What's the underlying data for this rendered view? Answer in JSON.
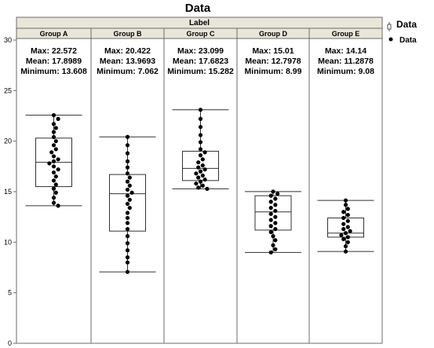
{
  "chart_data": {
    "type": "box",
    "title": "Data",
    "group_header": "Label",
    "ylim": [
      0,
      30
    ],
    "yticks": [
      0,
      5,
      10,
      15,
      20,
      25,
      30
    ],
    "legend": {
      "title": "Data",
      "items": [
        "Data"
      ],
      "position": "right"
    },
    "stat_labels": {
      "max": "Max:",
      "mean": "Mean:",
      "min": "Minimum:"
    },
    "groups": [
      {
        "label": "Group A",
        "max": "22.572",
        "mean": "17.8989",
        "min": "13.608",
        "box": {
          "q1": 15.5,
          "median": 17.9,
          "q3": 20.3,
          "whisker_low": 13.608,
          "whisker_high": 22.572
        },
        "points": [
          22.57,
          22.2,
          21.7,
          21.3,
          20.9,
          20.4,
          20.0,
          19.6,
          19.2,
          18.9,
          18.5,
          18.2,
          18.0,
          17.8,
          17.5,
          17.2,
          16.9,
          16.5,
          16.1,
          15.7,
          15.3,
          14.9,
          14.4,
          13.9,
          13.61
        ]
      },
      {
        "label": "Group B",
        "max": "20.422",
        "mean": "13.9693",
        "min": "7.062",
        "box": {
          "q1": 11.1,
          "median": 14.8,
          "q3": 16.7,
          "whisker_low": 7.062,
          "whisker_high": 20.422
        },
        "points": [
          20.42,
          19.6,
          18.8,
          18.0,
          17.4,
          16.8,
          16.4,
          16.0,
          15.6,
          15.2,
          14.9,
          14.6,
          14.2,
          13.8,
          13.4,
          12.9,
          12.4,
          11.9,
          11.3,
          10.6,
          9.9,
          9.2,
          8.5,
          8.0,
          7.06
        ]
      },
      {
        "label": "Group C",
        "max": "23.099",
        "mean": "17.6823",
        "min": "15.282",
        "box": {
          "q1": 16.1,
          "median": 17.3,
          "q3": 19.0,
          "whisker_low": 15.282,
          "whisker_high": 23.099
        },
        "points": [
          23.1,
          22.2,
          21.4,
          20.6,
          19.9,
          19.2,
          18.9,
          18.6,
          18.2,
          17.9,
          17.6,
          17.4,
          17.2,
          17.0,
          16.8,
          16.6,
          16.4,
          16.2,
          16.0,
          15.8,
          15.6,
          15.4,
          15.28
        ]
      },
      {
        "label": "Group D",
        "max": "15.01",
        "mean": "12.7978",
        "min": "8.99",
        "box": {
          "q1": 11.2,
          "median": 13.0,
          "q3": 14.6,
          "whisker_low": 8.99,
          "whisker_high": 15.01
        },
        "points": [
          15.01,
          14.8,
          14.6,
          14.3,
          14.0,
          13.7,
          13.4,
          13.1,
          12.8,
          12.5,
          12.2,
          11.9,
          11.6,
          11.3,
          11.0,
          10.6,
          10.2,
          9.7,
          9.3,
          8.99
        ]
      },
      {
        "label": "Group E",
        "max": "14.14",
        "mean": "11.2878",
        "min": "9.08",
        "box": {
          "q1": 10.5,
          "median": 10.9,
          "q3": 12.4,
          "whisker_low": 9.08,
          "whisker_high": 14.14
        },
        "points": [
          14.14,
          13.7,
          13.3,
          13.0,
          12.7,
          12.4,
          12.1,
          11.8,
          11.5,
          11.3,
          11.1,
          10.9,
          10.7,
          10.5,
          10.3,
          10.0,
          9.6,
          9.08
        ]
      }
    ]
  },
  "colors": {
    "header_bg": "#e8e6d9",
    "frame": "#6b6b6b",
    "box": "#333333",
    "point": "#000000"
  }
}
